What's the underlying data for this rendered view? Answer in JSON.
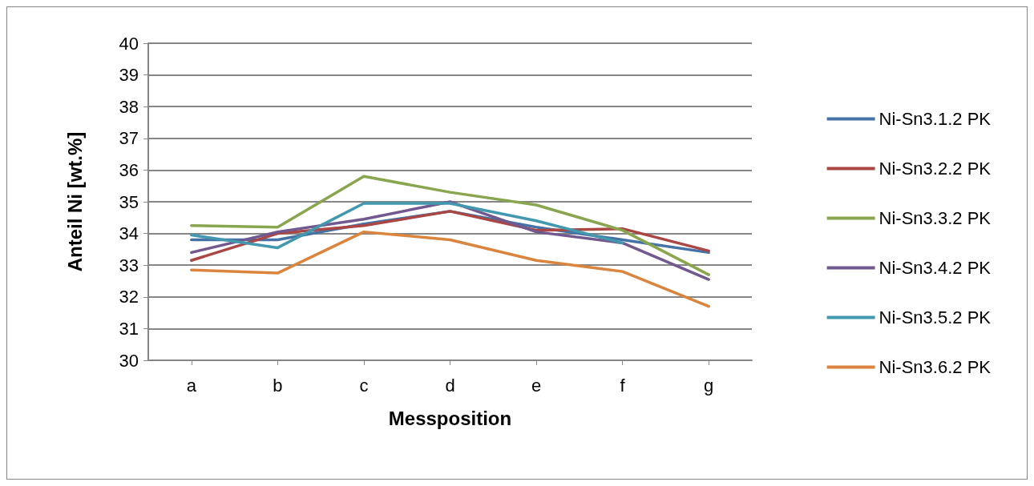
{
  "chart_data": {
    "type": "line",
    "xlabel": "Messposition",
    "ylabel": "Anteil Ni [wt.%]",
    "categories": [
      "a",
      "b",
      "c",
      "d",
      "e",
      "f",
      "g"
    ],
    "ylim": [
      30,
      40
    ],
    "yticks": [
      30,
      31,
      32,
      33,
      34,
      35,
      36,
      37,
      38,
      39,
      40
    ],
    "grid": "y",
    "legend": "right",
    "marker": "none",
    "line_style": "solid",
    "series": [
      {
        "name": "Ni-Sn3.1.2 PK",
        "color": "#4572a7",
        "values": [
          33.8,
          33.8,
          34.3,
          34.7,
          34.2,
          33.8,
          33.4
        ]
      },
      {
        "name": "Ni-Sn3.2.2 PK",
        "color": "#aa4643",
        "values": [
          33.15,
          34.0,
          34.25,
          34.7,
          34.1,
          34.15,
          33.45
        ]
      },
      {
        "name": "Ni-Sn3.3.2 PK",
        "color": "#89a54e",
        "values": [
          34.25,
          34.2,
          35.8,
          35.3,
          34.9,
          34.1,
          32.7
        ]
      },
      {
        "name": "Ni-Sn3.4.2 PK",
        "color": "#71588f",
        "values": [
          33.4,
          34.05,
          34.45,
          35.0,
          34.05,
          33.7,
          32.55
        ]
      },
      {
        "name": "Ni-Sn3.5.2 PK",
        "color": "#4198af",
        "values": [
          33.95,
          33.55,
          34.95,
          34.95,
          34.4,
          33.7,
          null
        ]
      },
      {
        "name": "Ni-Sn3.6.2 PK",
        "color": "#db843d",
        "values": [
          32.85,
          32.75,
          34.05,
          33.8,
          33.15,
          32.8,
          31.7
        ]
      }
    ]
  }
}
